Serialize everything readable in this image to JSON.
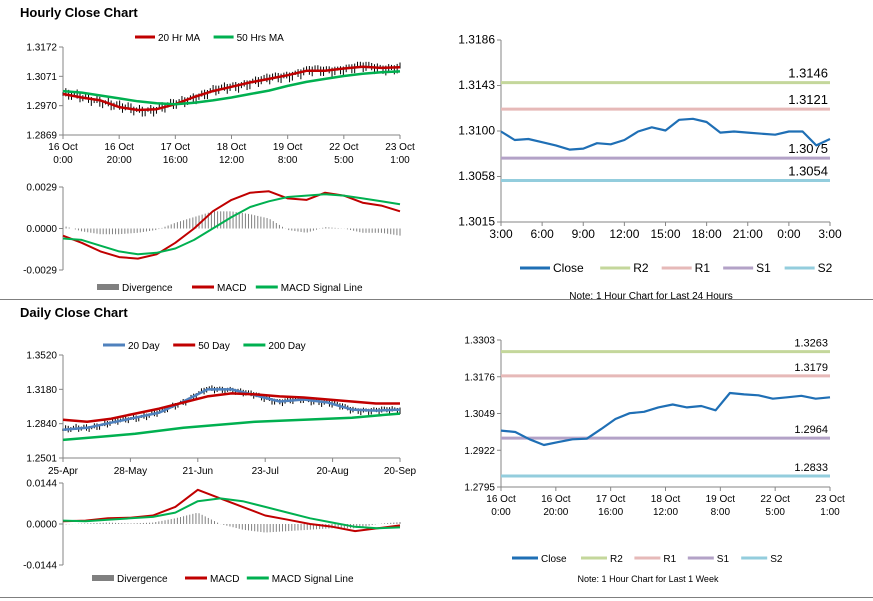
{
  "sections": {
    "hourly_title": "Hourly Close Chart",
    "daily_title": "Daily Close Chart"
  },
  "colors": {
    "close": "#1f6fb5",
    "r2": "#c4d79b",
    "r1": "#e6b9b8",
    "s1": "#b3a2c7",
    "s2": "#93cddd",
    "ma_red": "#c00000",
    "ma_green": "#00b050",
    "ma_blue": "#4f81bd",
    "price_bar": "#000000",
    "divergence": "#808080"
  },
  "chart_data": [
    {
      "type": "line",
      "id": "hourly-price",
      "x_labels": [
        "16 Oct 0:00",
        "16 Oct 20:00",
        "17 Oct 16:00",
        "18 Oct 12:00",
        "19 Oct 8:00",
        "22 Oct 5:00",
        "23 Oct 1:00"
      ],
      "y_ticks": [
        "1.3172",
        "1.3071",
        "1.2970",
        "1.2869"
      ],
      "ylim": [
        1.2869,
        1.3172
      ],
      "legend": [
        "20 Hr MA",
        "50 Hrs MA"
      ],
      "series": [
        {
          "name": "20 Hr MA",
          "values": [
            1.301,
            1.2998,
            1.2988,
            1.2965,
            1.2955,
            1.2958,
            1.2975,
            1.3,
            1.302,
            1.3035,
            1.305,
            1.3062,
            1.3075,
            1.309,
            1.309,
            1.3098,
            1.3104,
            1.31,
            1.3102
          ]
        },
        {
          "name": "50 Hrs MA",
          "values": [
            1.302,
            1.3015,
            1.3005,
            1.2995,
            1.2985,
            1.2978,
            1.2975,
            1.298,
            1.2988,
            1.2998,
            1.301,
            1.3022,
            1.3038,
            1.3052,
            1.3062,
            1.3072,
            1.308,
            1.3085,
            1.3088
          ]
        }
      ]
    },
    {
      "type": "line",
      "id": "hourly-macd",
      "y_ticks": [
        "0.0029",
        "0.0000",
        "-0.0029"
      ],
      "ylim": [
        -0.0029,
        0.0029
      ],
      "legend": [
        "Divergence",
        "MACD",
        "MACD Signal Line"
      ],
      "series": [
        {
          "name": "MACD",
          "values": [
            -0.0005,
            -0.001,
            -0.0016,
            -0.002,
            -0.0021,
            -0.0018,
            -0.001,
            0.0,
            0.0012,
            0.002,
            0.0025,
            0.0026,
            0.0021,
            0.002,
            0.0025,
            0.0023,
            0.0018,
            0.0016,
            0.0012
          ]
        },
        {
          "name": "MACD Signal Line",
          "values": [
            -0.0007,
            -0.0008,
            -0.0012,
            -0.0016,
            -0.0018,
            -0.0017,
            -0.0014,
            -0.0008,
            0.0,
            0.0008,
            0.0015,
            0.0019,
            0.0022,
            0.0023,
            0.0024,
            0.0023,
            0.0021,
            0.0019,
            0.0017
          ]
        },
        {
          "name": "Divergence",
          "values": [
            0.0002,
            -0.0002,
            -0.0004,
            -0.0004,
            -0.0003,
            -0.0001,
            0.0004,
            0.0008,
            0.0012,
            0.0012,
            0.001,
            0.0007,
            -0.0001,
            -0.0003,
            0.0001,
            0.0,
            -0.0003,
            -0.0003,
            -0.0005
          ]
        }
      ]
    },
    {
      "type": "line",
      "id": "hourly-pivots",
      "x_labels": [
        "3:00",
        "6:00",
        "9:00",
        "12:00",
        "15:00",
        "18:00",
        "21:00",
        "0:00",
        "3:00"
      ],
      "y_ticks": [
        "1.3186",
        "1.3143",
        "1.3100",
        "1.3058",
        "1.3015"
      ],
      "ylim": [
        1.3015,
        1.3186
      ],
      "legend": [
        "Close",
        "R2",
        "R1",
        "S1",
        "S2"
      ],
      "note": "Note: 1 Hour Chart for Last 24 Hours",
      "levels": {
        "R2": 1.3146,
        "R1": 1.3121,
        "S1": 1.3075,
        "S2": 1.3054
      },
      "level_labels": {
        "R2": "1.3146",
        "R1": "1.3121",
        "S1": "1.3075",
        "S2": "1.3054"
      },
      "series": [
        {
          "name": "Close",
          "values": [
            1.31,
            1.3092,
            1.3093,
            1.309,
            1.3087,
            1.3083,
            1.3084,
            1.3089,
            1.3088,
            1.3092,
            1.31,
            1.3104,
            1.3101,
            1.3111,
            1.3112,
            1.3109,
            1.3099,
            1.31,
            1.3099,
            1.3098,
            1.3097,
            1.31,
            1.31,
            1.3087,
            1.3093
          ]
        }
      ]
    },
    {
      "type": "line",
      "id": "daily-price",
      "x_labels": [
        "25-Apr",
        "28-May",
        "21-Jun",
        "23-Jul",
        "20-Aug",
        "20-Sep"
      ],
      "y_ticks": [
        "1.3520",
        "1.3180",
        "1.2840",
        "1.2501"
      ],
      "ylim": [
        1.2501,
        1.352
      ],
      "legend": [
        "20 Day",
        "50 Day",
        "200 Day"
      ],
      "series": [
        {
          "name": "20 Day",
          "values": [
            1.278,
            1.28,
            1.285,
            1.29,
            1.295,
            1.306,
            1.318,
            1.318,
            1.312,
            1.306,
            1.308,
            1.305,
            1.298,
            1.297,
            1.298
          ]
        },
        {
          "name": "50 Day",
          "values": [
            1.288,
            1.286,
            1.289,
            1.294,
            1.299,
            1.305,
            1.311,
            1.314,
            1.313,
            1.311,
            1.31,
            1.308,
            1.306,
            1.304,
            1.304
          ]
        },
        {
          "name": "200 Day",
          "values": [
            1.268,
            1.27,
            1.272,
            1.274,
            1.277,
            1.28,
            1.282,
            1.284,
            1.286,
            1.287,
            1.288,
            1.289,
            1.29,
            1.292,
            1.294
          ]
        }
      ]
    },
    {
      "type": "line",
      "id": "daily-macd",
      "y_ticks": [
        "0.0144",
        "0.0000",
        "-0.0144"
      ],
      "ylim": [
        -0.0144,
        0.0144
      ],
      "legend": [
        "Divergence",
        "MACD",
        "MACD Signal Line"
      ],
      "series": [
        {
          "name": "MACD",
          "values": [
            0.001,
            0.0012,
            0.002,
            0.0022,
            0.003,
            0.006,
            0.012,
            0.009,
            0.006,
            0.003,
            0.0015,
            0.0,
            -0.001,
            -0.0025,
            -0.0015,
            -0.0005
          ]
        },
        {
          "name": "MACD Signal Line",
          "values": [
            0.0012,
            0.001,
            0.0015,
            0.002,
            0.0025,
            0.004,
            0.008,
            0.009,
            0.008,
            0.006,
            0.004,
            0.002,
            0.0005,
            -0.001,
            -0.0015,
            -0.0012
          ]
        },
        {
          "name": "Divergence",
          "values": [
            -0.0002,
            0.0002,
            0.0005,
            0.0002,
            0.0005,
            0.002,
            0.004,
            0.0,
            -0.002,
            -0.003,
            -0.0025,
            -0.002,
            -0.0015,
            -0.0015,
            0.0,
            0.0007
          ]
        }
      ]
    },
    {
      "type": "line",
      "id": "daily-pivots",
      "x_labels": [
        "16 Oct 0:00",
        "16 Oct 20:00",
        "17 Oct 16:00",
        "18 Oct 12:00",
        "19 Oct 8:00",
        "22 Oct 5:00",
        "23 Oct 1:00"
      ],
      "y_ticks": [
        "1.3303",
        "1.3176",
        "1.3049",
        "1.2922",
        "1.2795"
      ],
      "ylim": [
        1.2795,
        1.3303
      ],
      "legend": [
        "Close",
        "R2",
        "R1",
        "S1",
        "S2"
      ],
      "note": "Note: 1 Hour Chart for Last 1 Week",
      "levels": {
        "R2": 1.3263,
        "R1": 1.3179,
        "S1": 1.2964,
        "S2": 1.2833
      },
      "level_labels": {
        "R2": "1.3263",
        "R1": "1.3179",
        "S1": "1.2964",
        "S2": "1.2833"
      },
      "series": [
        {
          "name": "Close",
          "values": [
            1.299,
            1.2985,
            1.296,
            1.294,
            1.295,
            1.296,
            1.2962,
            1.2995,
            1.303,
            1.305,
            1.3055,
            1.307,
            1.308,
            1.307,
            1.3075,
            1.306,
            1.312,
            1.3115,
            1.3112,
            1.31,
            1.3105,
            1.311,
            1.31,
            1.3105
          ]
        }
      ]
    }
  ]
}
